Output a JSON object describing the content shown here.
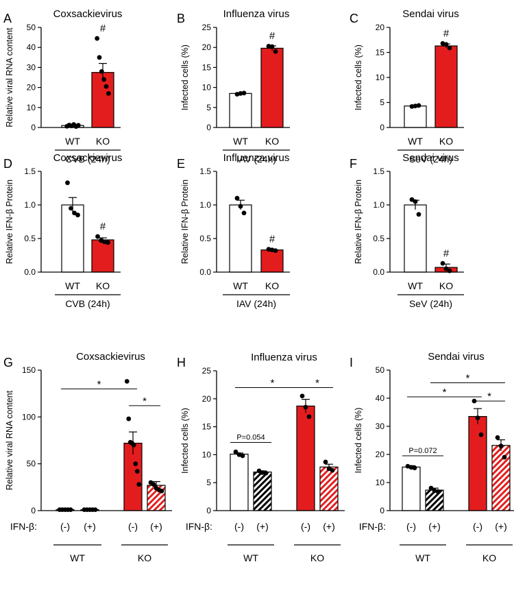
{
  "chart_data": [
    {
      "id": "A",
      "type": "bar",
      "title": "Coxsackievirus",
      "ylabel": "Relative viral RNA content",
      "ylim": [
        0,
        50
      ],
      "yticks": [
        0,
        10,
        20,
        30,
        40,
        50
      ],
      "categories": [
        "WT",
        "KO"
      ],
      "group_label": "CVB (24h)",
      "values": [
        1,
        27.5
      ],
      "errors": [
        0.3,
        4.5
      ],
      "points": [
        [
          0.6,
          1.2,
          0.8,
          1.5,
          0.5,
          1.1
        ],
        [
          44.5,
          35,
          28,
          24,
          20.5,
          17
        ]
      ],
      "fills": [
        "white",
        "red"
      ],
      "annotations": [
        {
          "bar": 1,
          "text": "#"
        }
      ]
    },
    {
      "id": "B",
      "type": "bar",
      "title": "Influenza virus",
      "ylabel": "Infected cells (%)",
      "ylim": [
        0,
        25
      ],
      "yticks": [
        0,
        5,
        10,
        15,
        20,
        25
      ],
      "categories": [
        "WT",
        "KO"
      ],
      "group_label": "IAV (24h)",
      "values": [
        8.5,
        19.8
      ],
      "errors": [
        0.15,
        0.6
      ],
      "points": [
        [
          8.3,
          8.5,
          8.6
        ],
        [
          20.3,
          20.2,
          19
        ]
      ],
      "fills": [
        "white",
        "red"
      ],
      "annotations": [
        {
          "bar": 1,
          "text": "#"
        }
      ]
    },
    {
      "id": "C",
      "type": "bar",
      "title": "Sendai virus",
      "ylabel": "Infected cells (%)",
      "ylim": [
        0,
        20
      ],
      "yticks": [
        0,
        5,
        10,
        15,
        20
      ],
      "categories": [
        "WT",
        "KO"
      ],
      "group_label": "SeV (24h)",
      "values": [
        4.3,
        16.3
      ],
      "errors": [
        0.1,
        0.4
      ],
      "points": [
        [
          4.2,
          4.3,
          4.4
        ],
        [
          16.8,
          16.6,
          15.9
        ]
      ],
      "fills": [
        "white",
        "red"
      ],
      "annotations": [
        {
          "bar": 1,
          "text": "#"
        }
      ]
    },
    {
      "id": "D",
      "type": "bar",
      "title": "Coxsackievirus",
      "ylabel": "Relative IFN-β Protein",
      "ylim": [
        0,
        1.5
      ],
      "yticks": [
        "0.0",
        "0.5",
        "1.0",
        "1.5"
      ],
      "categories": [
        "WT",
        "KO"
      ],
      "group_label": "CVB (24h)",
      "values": [
        1.0,
        0.48
      ],
      "errors": [
        0.11,
        0.03
      ],
      "points": [
        [
          1.33,
          0.95,
          0.88,
          0.85
        ],
        [
          0.53,
          0.47,
          0.45,
          0.44
        ]
      ],
      "fills": [
        "white",
        "red"
      ],
      "annotations": [
        {
          "bar": 1,
          "text": "#"
        }
      ]
    },
    {
      "id": "E",
      "type": "bar",
      "title": "Influenza virus",
      "ylabel": "Relative IFN-β Protein",
      "ylim": [
        0,
        1.5
      ],
      "yticks": [
        "0.0",
        "0.5",
        "1.0",
        "1.5"
      ],
      "categories": [
        "WT",
        "KO"
      ],
      "group_label": "IAV (24h)",
      "values": [
        1.0,
        0.33
      ],
      "errors": [
        0.07,
        0.01
      ],
      "points": [
        [
          1.1,
          0.98,
          0.88
        ],
        [
          0.34,
          0.33,
          0.32
        ]
      ],
      "fills": [
        "white",
        "red"
      ],
      "annotations": [
        {
          "bar": 1,
          "text": "#"
        }
      ]
    },
    {
      "id": "F",
      "type": "bar",
      "title": "Sendai virus",
      "ylabel": "Relative IFN-β Protein",
      "ylim": [
        0,
        1.5
      ],
      "yticks": [
        "0.0",
        "0.5",
        "1.0",
        "1.5"
      ],
      "categories": [
        "WT",
        "KO"
      ],
      "group_label": "SeV (24h)",
      "values": [
        1.0,
        0.07
      ],
      "errors": [
        0.07,
        0.05
      ],
      "points": [
        [
          1.08,
          1.05,
          0.86
        ],
        [
          0.13,
          0.05,
          0.02
        ]
      ],
      "fills": [
        "white",
        "red"
      ],
      "annotations": [
        {
          "bar": 1,
          "text": "#"
        }
      ]
    },
    {
      "id": "G",
      "type": "bar",
      "title": "Coxsackievirus",
      "ylabel": "Relative viral RNA content",
      "ylim": [
        0,
        150
      ],
      "yticks": [
        0,
        50,
        100,
        150
      ],
      "treatment_label": "IFN-β:",
      "categories": [
        "(-)",
        "(+)",
        "(-)",
        "(+)"
      ],
      "groups": [
        {
          "label": "WT",
          "bars": [
            0,
            1
          ]
        },
        {
          "label": "KO",
          "bars": [
            2,
            3
          ]
        }
      ],
      "values": [
        1,
        1,
        72,
        27
      ],
      "errors": [
        0.3,
        0.3,
        12,
        4
      ],
      "points": [
        [
          1,
          1,
          1,
          1,
          1
        ],
        [
          1,
          1,
          1,
          1,
          1
        ],
        [
          138,
          98,
          73,
          72,
          70,
          50,
          42,
          28
        ],
        [
          30,
          28,
          24,
          22,
          21
        ]
      ],
      "fills": [
        "white",
        "white-hatch",
        "red",
        "red-hatch"
      ],
      "comparisons": [
        {
          "a": 0,
          "b": 2,
          "text": "*",
          "level": 130
        },
        {
          "a": 2,
          "b": 3,
          "text": "*",
          "level": 112
        }
      ]
    },
    {
      "id": "H",
      "type": "bar",
      "title": "Influenza virus",
      "ylabel": "Infected cells (%)",
      "ylim": [
        0,
        25
      ],
      "yticks": [
        0,
        5,
        10,
        15,
        20,
        25
      ],
      "treatment_label": "IFN-β:",
      "categories": [
        "(-)",
        "(+)",
        "(-)",
        "(+)"
      ],
      "groups": [
        {
          "label": "WT",
          "bars": [
            0,
            1
          ]
        },
        {
          "label": "KO",
          "bars": [
            2,
            3
          ]
        }
      ],
      "values": [
        10.1,
        6.9,
        18.7,
        7.8
      ],
      "errors": [
        0.2,
        0.2,
        1.2,
        0.5
      ],
      "points": [
        [
          10.5,
          10.0,
          9.8
        ],
        [
          7.1,
          6.8,
          6.7
        ],
        [
          20.5,
          18.5,
          16.8
        ],
        [
          8.7,
          7.5,
          7.2
        ]
      ],
      "fills": [
        "white",
        "black-hatch",
        "red",
        "red-hatch"
      ],
      "comparisons": [
        {
          "a": 0,
          "b": 2,
          "text": "*",
          "level": 22
        },
        {
          "a": 2,
          "b": 3,
          "text": "*",
          "level": 22
        },
        {
          "a": 0,
          "b": 1,
          "text": "P=0.054",
          "level": 12.2
        }
      ]
    },
    {
      "id": "I",
      "type": "bar",
      "title": "Sendai virus",
      "ylabel": "Infected cells (%)",
      "ylim": [
        0,
        50
      ],
      "yticks": [
        0,
        10,
        20,
        30,
        40,
        50
      ],
      "treatment_label": "IFN-β:",
      "categories": [
        "(-)",
        "(+)",
        "(-)",
        "(+)"
      ],
      "groups": [
        {
          "label": "WT",
          "bars": [
            0,
            1
          ]
        },
        {
          "label": "KO",
          "bars": [
            2,
            3
          ]
        }
      ],
      "values": [
        15.5,
        7.3,
        33.5,
        23.2
      ],
      "errors": [
        0.5,
        0.7,
        2.8,
        2.0
      ],
      "points": [
        [
          15.8,
          15.4,
          15.2
        ],
        [
          8.0,
          7.1,
          6.8
        ],
        [
          39,
          33,
          27
        ],
        [
          26,
          23,
          19
        ]
      ],
      "fills": [
        "white",
        "black-hatch",
        "red",
        "red-hatch"
      ],
      "comparisons": [
        {
          "a": 0,
          "b": 2,
          "text": "*",
          "level": 40.5
        },
        {
          "a": 1,
          "b": 3,
          "text": "*",
          "level": 45.5
        },
        {
          "a": 2,
          "b": 3,
          "text": "*",
          "level": 39
        },
        {
          "a": 0,
          "b": 1,
          "text": "P=0.072",
          "level": 19.5
        }
      ]
    }
  ]
}
